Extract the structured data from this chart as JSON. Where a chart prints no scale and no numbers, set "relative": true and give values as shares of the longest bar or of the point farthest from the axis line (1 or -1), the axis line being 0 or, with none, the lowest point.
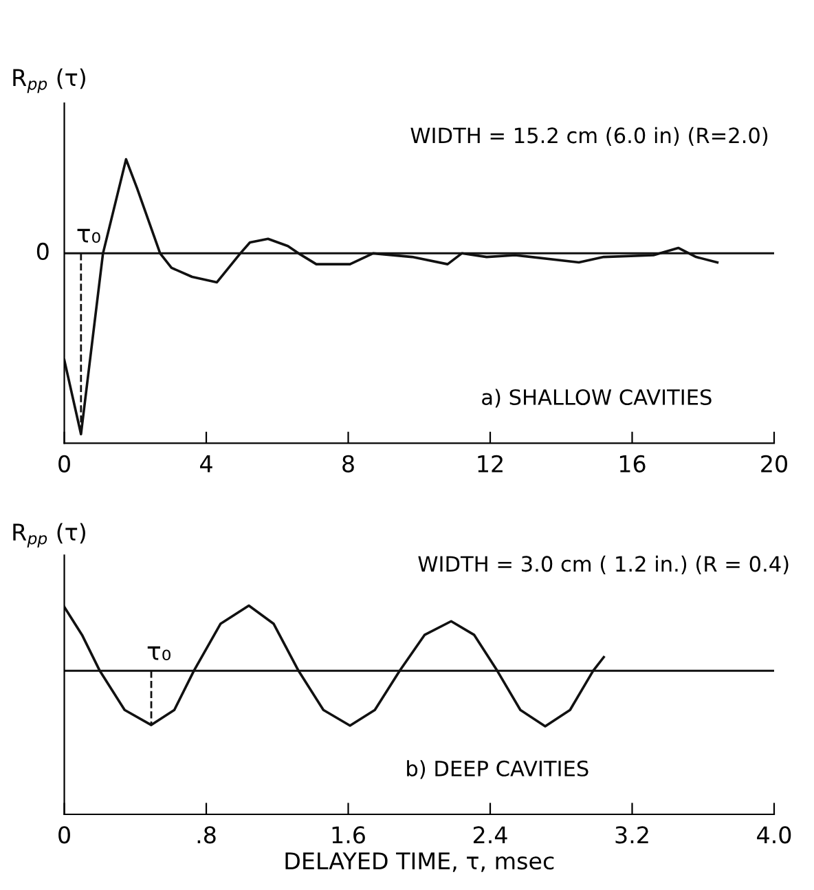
{
  "chart_data": [
    {
      "type": "line",
      "relative": true,
      "ylabel": "R$_{pp}$ (τ)",
      "xlim": [
        0,
        20
      ],
      "xticks": [
        0,
        4,
        8,
        12,
        16,
        20
      ],
      "color": "#111111",
      "line_style": "solid",
      "marker": "none",
      "grid": false,
      "legend": false,
      "tick_labels": "x",
      "x": [
        0,
        0.47,
        1.09,
        1.74,
        2.05,
        2.7,
        3.02,
        3.6,
        4.3,
        4.96,
        5.23,
        5.74,
        6.3,
        6.6,
        7.1,
        8.05,
        8.7,
        9.8,
        10.8,
        11.2,
        11.9,
        12.7,
        14.5,
        15.2,
        16.6,
        17.3,
        17.8,
        18.4
      ],
      "values": [
        -0.59,
        -1,
        0,
        0.52,
        0.36,
        0,
        -0.08,
        -0.13,
        -0.16,
        0,
        0.06,
        0.08,
        0.04,
        0,
        -0.06,
        -0.06,
        0,
        -0.02,
        -0.06,
        0,
        -0.02,
        -0.01,
        -0.05,
        -0.02,
        -0.01,
        0.03,
        -0.02,
        -0.05
      ],
      "ref_lines": [
        {
          "axis": "y",
          "value": 0,
          "label": "0"
        }
      ],
      "annotations": [
        "WIDTH = 15.2 cm (6.0 in) (R=2.0)",
        "a) SHALLOW CAVITIES",
        {
          "text": "τ₀",
          "x": 0.47,
          "y": 0
        }
      ]
    },
    {
      "type": "line",
      "relative": true,
      "ylabel": "R$_{pp}$ (τ)",
      "xlabel": "DELAYED TIME, τ, msec",
      "xlim": [
        0,
        4.0
      ],
      "xticks": [
        0,
        {
          "value": 0.8,
          "label": ".8"
        },
        1.6,
        2.4,
        3.2,
        {
          "value": 4.0,
          "label": "4.0"
        }
      ],
      "color": "#111111",
      "line_style": "solid",
      "marker": "none",
      "grid": false,
      "legend": false,
      "tick_labels": "x",
      "x": [
        0,
        0.1,
        0.2,
        0.34,
        0.49,
        0.62,
        0.73,
        0.88,
        1.04,
        1.18,
        1.32,
        1.46,
        1.61,
        1.75,
        1.89,
        2.03,
        2.18,
        2.31,
        2.44,
        2.57,
        2.71,
        2.85,
        2.98,
        3.04
      ],
      "values": [
        0.98,
        0.55,
        0,
        -0.6,
        -0.83,
        -0.6,
        0,
        0.72,
        1.0,
        0.72,
        0,
        -0.6,
        -0.84,
        -0.6,
        0,
        0.55,
        0.76,
        0.55,
        0,
        -0.6,
        -0.85,
        -0.6,
        0,
        0.21
      ],
      "ref_lines": [
        {
          "axis": "y",
          "value": 0
        }
      ],
      "annotations": [
        "WIDTH = 3.0 cm ( 1.2 in.) (R = 0.4)",
        "b) DEEP CAVITIES",
        {
          "text": "τ₀",
          "x": 0.49,
          "y": 0
        }
      ]
    }
  ]
}
